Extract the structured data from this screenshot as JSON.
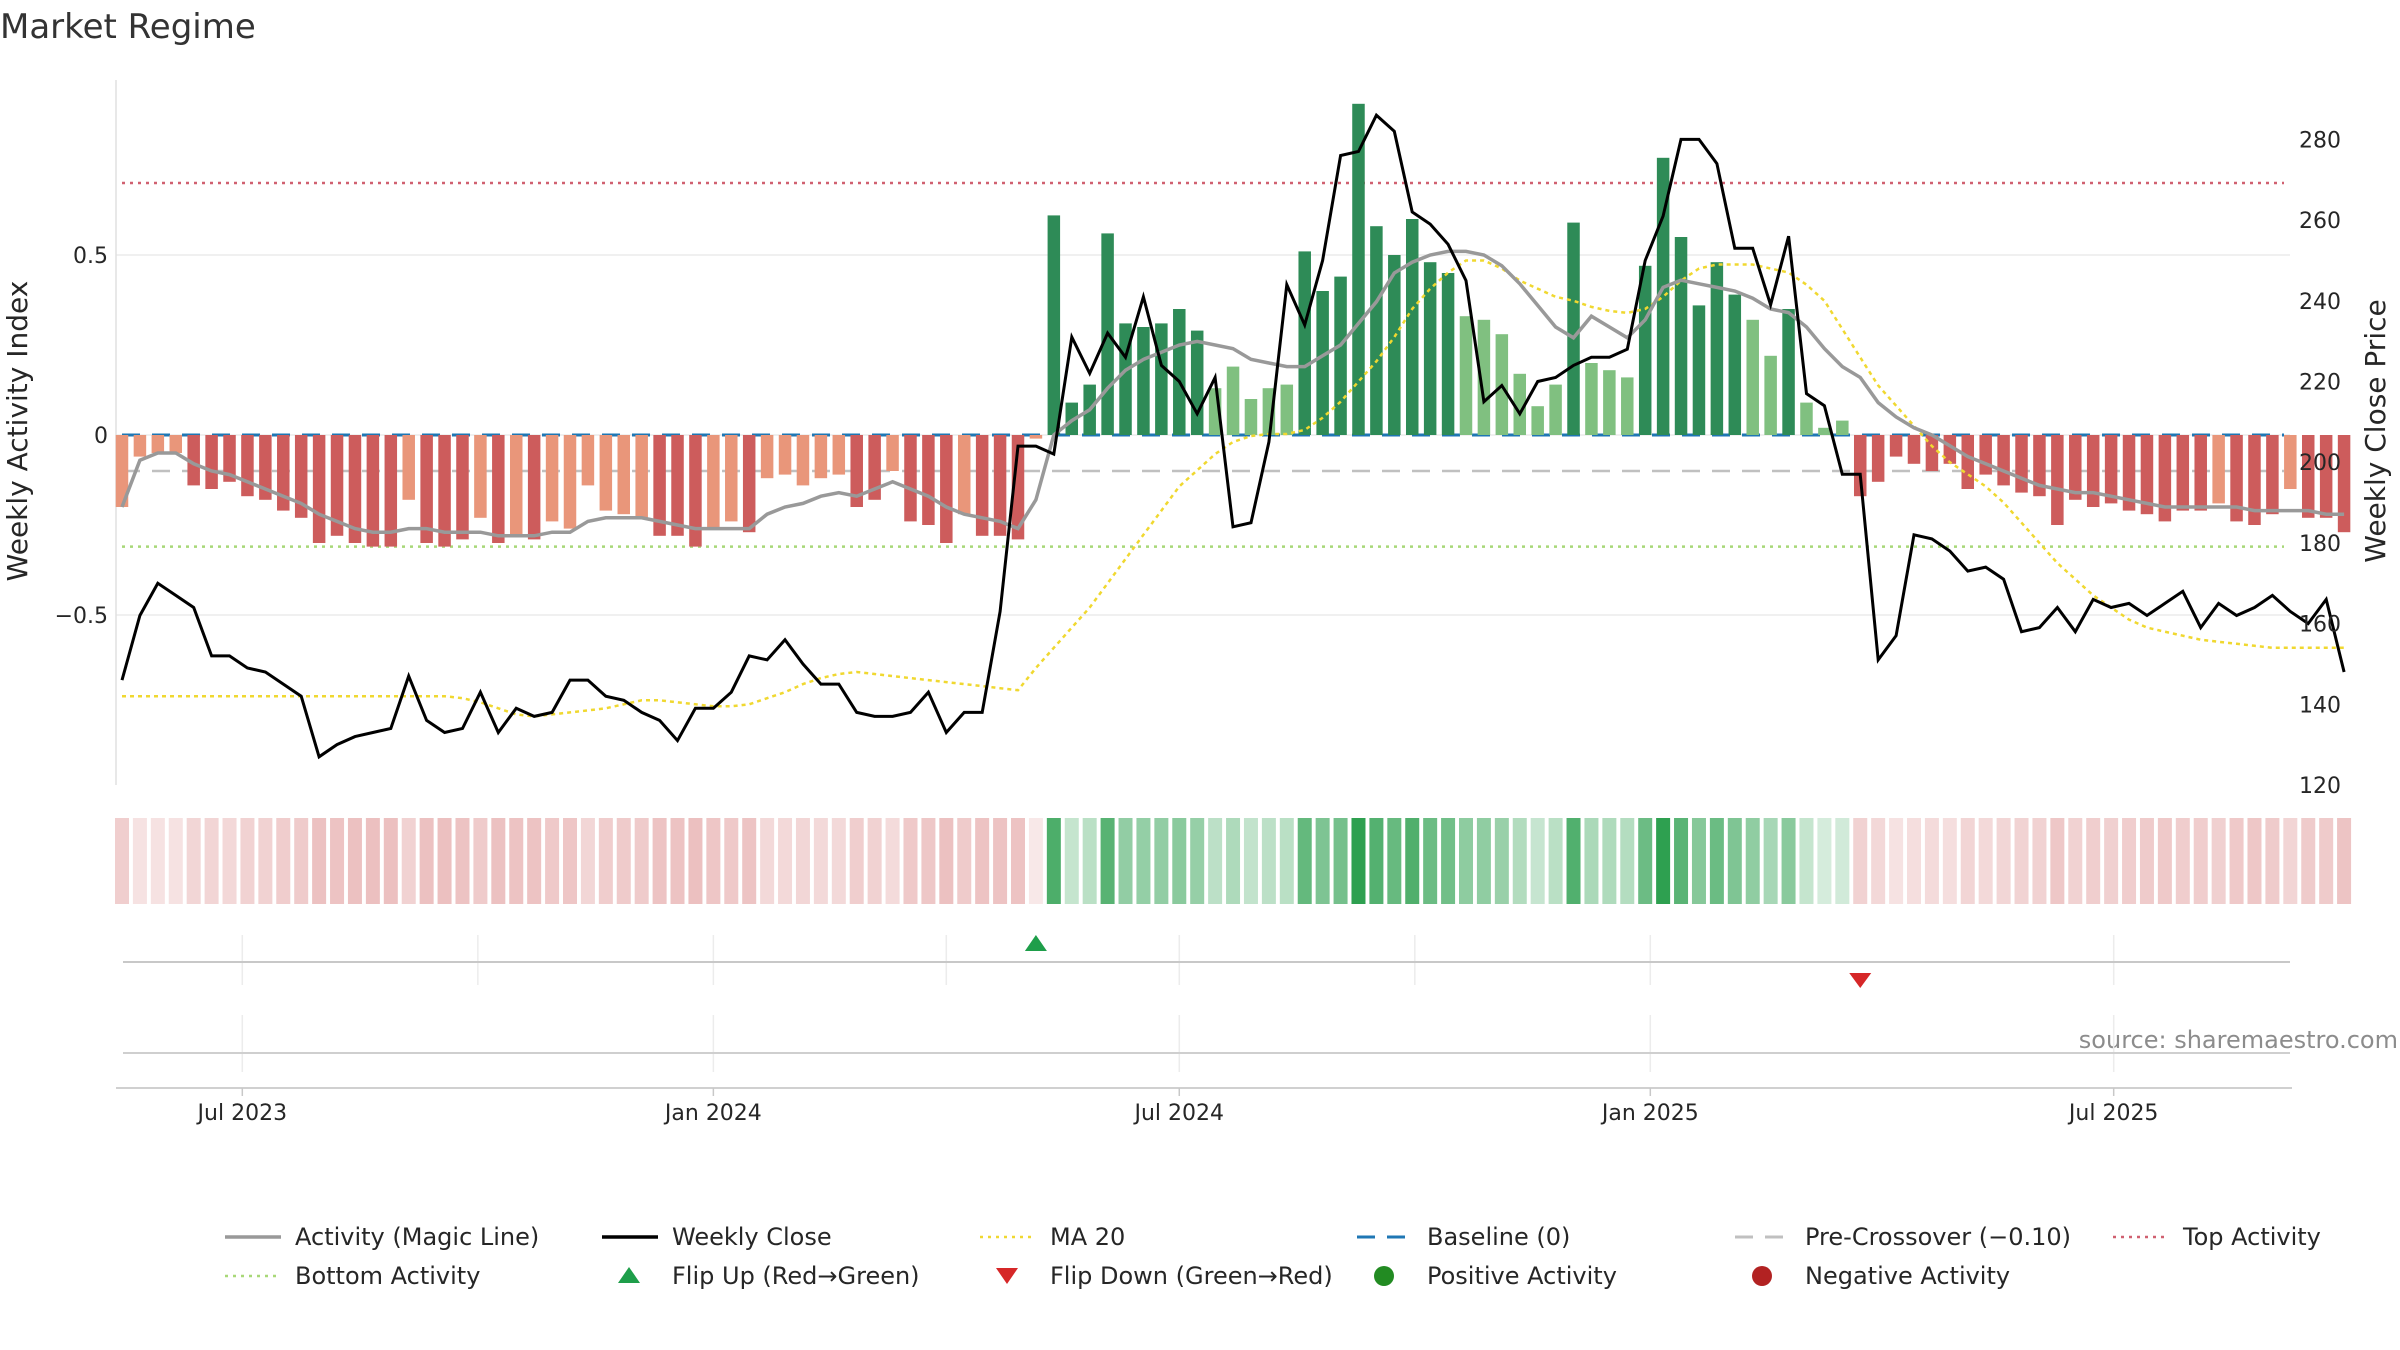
{
  "chart_data": {
    "type": "bar",
    "title": "Market Regime",
    "ylabel_left": "Weekly Activity Index",
    "ylabel_right": "Weekly Close Price",
    "source": "source: sharemaestro.com",
    "left_axis": {
      "range": [
        -0.97,
        0.97
      ],
      "ticks": [
        -0.5,
        0,
        0.5
      ],
      "tick_labels": [
        "−0.5",
        "0",
        "0.5"
      ]
    },
    "right_axis": {
      "range": [
        114.7,
        290.0
      ],
      "ticks": [
        120,
        140,
        160,
        180,
        200,
        220,
        240,
        260,
        280
      ],
      "tick_labels": [
        "120",
        "140",
        "160",
        "180",
        "200",
        "220",
        "240",
        "260",
        "280"
      ]
    },
    "x_axis": {
      "start_week": "2023-05-15",
      "ticks": [
        {
          "date": "2023-07-01",
          "label": "Jul 2023"
        },
        {
          "date": "2024-01-01",
          "label": "Jan 2024"
        },
        {
          "date": "2024-07-01",
          "label": "Jul 2024"
        },
        {
          "date": "2025-01-01",
          "label": "Jan 2025"
        },
        {
          "date": "2025-07-01",
          "label": "Jul 2025"
        }
      ]
    },
    "grid": true,
    "reference_lines": {
      "baseline": 0,
      "pre_crossover": -0.1,
      "top_activity": 0.7,
      "bottom_activity": -0.31
    },
    "activity": [
      -0.2,
      -0.06,
      -0.05,
      -0.05,
      -0.14,
      -0.15,
      -0.13,
      -0.17,
      -0.18,
      -0.21,
      -0.23,
      -0.3,
      -0.28,
      -0.3,
      -0.31,
      -0.31,
      -0.18,
      -0.3,
      -0.31,
      -0.29,
      -0.23,
      -0.3,
      -0.28,
      -0.29,
      -0.24,
      -0.26,
      -0.14,
      -0.21,
      -0.22,
      -0.23,
      -0.28,
      -0.28,
      -0.31,
      -0.26,
      -0.24,
      -0.27,
      -0.12,
      -0.11,
      -0.14,
      -0.12,
      -0.11,
      -0.2,
      -0.18,
      -0.1,
      -0.24,
      -0.25,
      -0.3,
      -0.22,
      -0.28,
      -0.28,
      -0.29,
      -0.01,
      0.61,
      0.09,
      0.14,
      0.56,
      0.31,
      0.3,
      0.31,
      0.35,
      0.29,
      0.13,
      0.19,
      0.1,
      0.13,
      0.14,
      0.51,
      0.4,
      0.44,
      0.92,
      0.58,
      0.5,
      0.6,
      0.48,
      0.45,
      0.33,
      0.32,
      0.28,
      0.17,
      0.08,
      0.14,
      0.59,
      0.2,
      0.18,
      0.16,
      0.47,
      0.77,
      0.55,
      0.36,
      0.48,
      0.39,
      0.32,
      0.22,
      0.35,
      0.09,
      0.02,
      0.04,
      -0.17,
      -0.13,
      -0.06,
      -0.08,
      -0.1,
      -0.08,
      -0.15,
      -0.11,
      -0.14,
      -0.16,
      -0.17,
      -0.25,
      -0.18,
      -0.2,
      -0.19,
      -0.21,
      -0.22,
      -0.24,
      -0.21,
      -0.21,
      -0.19,
      -0.24,
      -0.25,
      -0.22,
      -0.15,
      -0.23,
      -0.23,
      -0.27
    ],
    "magic_line": [
      -0.2,
      -0.07,
      -0.05,
      -0.05,
      -0.08,
      -0.1,
      -0.11,
      -0.13,
      -0.15,
      -0.17,
      -0.19,
      -0.22,
      -0.24,
      -0.26,
      -0.27,
      -0.27,
      -0.26,
      -0.26,
      -0.27,
      -0.27,
      -0.27,
      -0.28,
      -0.28,
      -0.28,
      -0.27,
      -0.27,
      -0.24,
      -0.23,
      -0.23,
      -0.23,
      -0.24,
      -0.25,
      -0.26,
      -0.26,
      -0.26,
      -0.26,
      -0.22,
      -0.2,
      -0.19,
      -0.17,
      -0.16,
      -0.17,
      -0.15,
      -0.13,
      -0.15,
      -0.17,
      -0.2,
      -0.22,
      -0.23,
      -0.24,
      -0.26,
      -0.18,
      0.0,
      0.04,
      0.07,
      0.13,
      0.18,
      0.21,
      0.23,
      0.25,
      0.26,
      0.25,
      0.24,
      0.21,
      0.2,
      0.19,
      0.19,
      0.22,
      0.25,
      0.31,
      0.37,
      0.45,
      0.48,
      0.5,
      0.51,
      0.51,
      0.5,
      0.47,
      0.42,
      0.36,
      0.3,
      0.27,
      0.33,
      0.3,
      0.27,
      0.32,
      0.41,
      0.43,
      0.42,
      0.41,
      0.4,
      0.38,
      0.35,
      0.34,
      0.3,
      0.24,
      0.19,
      0.16,
      0.09,
      0.05,
      0.02,
      0.0,
      -0.03,
      -0.06,
      -0.08,
      -0.1,
      -0.12,
      -0.14,
      -0.15,
      -0.16,
      -0.16,
      -0.17,
      -0.18,
      -0.19,
      -0.2,
      -0.2,
      -0.2,
      -0.2,
      -0.2,
      -0.21,
      -0.21,
      -0.21,
      -0.21,
      -0.22,
      -0.22
    ],
    "weekly_close": [
      146,
      162,
      170,
      167,
      164,
      152,
      152,
      149,
      148,
      145,
      142,
      127,
      130,
      132,
      133,
      134,
      147,
      136,
      133,
      134,
      143,
      133,
      139,
      137,
      138,
      146,
      146,
      142,
      141,
      138,
      136,
      131,
      139,
      139,
      143,
      152,
      151,
      156,
      150,
      145,
      145,
      138,
      137,
      137,
      138,
      143,
      133,
      138,
      138,
      163,
      204,
      204,
      202,
      231,
      222,
      232,
      226,
      241,
      224,
      220,
      212,
      221,
      184,
      185,
      205,
      244,
      234,
      250,
      276,
      277,
      286,
      282,
      262,
      259,
      254,
      245,
      215,
      219,
      212,
      220,
      221,
      224,
      226,
      226,
      228,
      250,
      261,
      280,
      280,
      274,
      253,
      253,
      239,
      256,
      217,
      214,
      197,
      197,
      151,
      157,
      182,
      181,
      178,
      173,
      174,
      171,
      158,
      159,
      164,
      158,
      166,
      164,
      165,
      162,
      165,
      168,
      159,
      165,
      162,
      164,
      167,
      163,
      160,
      166,
      148
    ],
    "ma20": [
      142,
      142,
      142,
      142,
      142,
      142,
      142,
      142,
      142,
      142,
      142,
      142,
      142,
      142,
      142,
      142,
      142,
      142,
      142,
      141.5,
      140.5,
      139,
      137.5,
      137,
      137.5,
      138,
      138.5,
      139,
      140,
      141,
      141,
      140.5,
      140,
      139.5,
      139.5,
      140,
      141.5,
      143,
      145,
      146.5,
      147.5,
      148,
      147.5,
      147,
      146.5,
      146,
      145.5,
      145,
      144.5,
      144,
      143.5,
      149,
      154,
      159,
      164,
      170,
      176,
      182,
      188,
      194,
      198,
      202,
      205,
      206.5,
      207,
      207,
      208,
      211,
      215,
      220,
      225,
      231,
      238,
      243,
      247,
      250,
      250,
      248,
      245,
      243,
      241,
      240,
      238.5,
      237.5,
      237,
      238,
      241,
      245,
      248,
      249,
      249,
      249,
      248,
      247,
      244,
      240,
      233,
      226,
      219,
      214,
      209,
      204,
      200,
      197,
      194,
      190,
      185,
      180,
      175,
      171,
      167,
      164,
      161,
      159,
      158,
      157,
      156,
      155.5,
      155,
      154.5,
      154,
      154,
      154,
      154,
      154
    ],
    "flips": [
      {
        "type": "up",
        "week": 51
      },
      {
        "type": "down",
        "week": 97
      }
    ],
    "colors": {
      "positive_strong": "#2e8b57",
      "positive_light": "#80c080",
      "negative_strong": "#cd5c5c",
      "negative_light": "#e9967a",
      "magic_line": "#999999",
      "close": "#000000",
      "ma20": "#f0d830",
      "baseline": "#1f77b4",
      "pre_crossover": "#c0c0c0",
      "top_activity": "#d06070",
      "bottom_activity": "#a8d878",
      "flip_up": "#1e9e4a",
      "flip_down": "#d62728",
      "positive_dot": "#228b22",
      "negative_dot": "#b22222"
    },
    "legend": [
      {
        "label": "Activity (Magic Line)",
        "style": "line",
        "color": "#999999"
      },
      {
        "label": "Weekly Close",
        "style": "line",
        "color": "#000000"
      },
      {
        "label": "MA 20",
        "style": "dotted",
        "color": "#f0d830"
      },
      {
        "label": "Baseline (0)",
        "style": "dashed",
        "color": "#1f77b4"
      },
      {
        "label": "Pre-Crossover (−0.10)",
        "style": "dashed",
        "color": "#c0c0c0"
      },
      {
        "label": "Top Activity",
        "style": "dotted",
        "color": "#d06070"
      },
      {
        "label": "Bottom Activity",
        "style": "dotted",
        "color": "#a8d878"
      },
      {
        "label": "Flip Up (Red→Green)",
        "style": "triangle-up",
        "color": "#1e9e4a"
      },
      {
        "label": "Flip Down (Green→Red)",
        "style": "triangle-down",
        "color": "#d62728"
      },
      {
        "label": "Positive Activity",
        "style": "dot",
        "color": "#228b22"
      },
      {
        "label": "Negative Activity",
        "style": "dot",
        "color": "#b22222"
      }
    ]
  }
}
